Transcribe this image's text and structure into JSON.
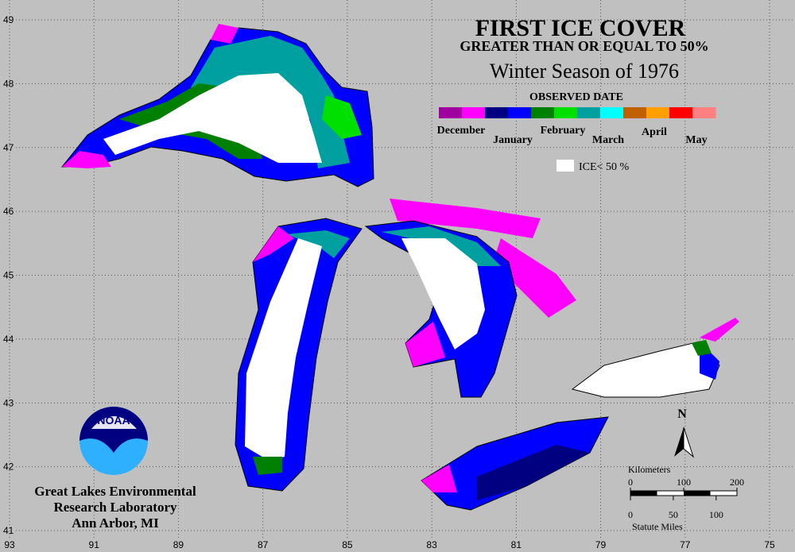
{
  "header": {
    "title": "FIRST ICE COVER",
    "subtitle": "GREATER THAN OR EQUAL TO 50%",
    "season": "Winter Season of 1976"
  },
  "legend": {
    "title": "OBSERVED DATE",
    "colors": [
      "#a000a0",
      "#ff00ff",
      "#000080",
      "#0000ff",
      "#008000",
      "#00e000",
      "#00a0a0",
      "#00ffff",
      "#c06000",
      "#ffa000",
      "#ff0000",
      "#ff8080"
    ],
    "labels": [
      "December",
      "January",
      "February",
      "March",
      "April",
      "May"
    ],
    "white_label": "ICE< 50 %"
  },
  "grid": {
    "lon_ticks": [
      93,
      91,
      89,
      87,
      85,
      83,
      81,
      79,
      77,
      75
    ],
    "lat_ticks": [
      49,
      48,
      47,
      46,
      45,
      44,
      43,
      42,
      41
    ],
    "xlim": [
      93,
      75
    ],
    "ylim": [
      49,
      41
    ]
  },
  "north": "N",
  "scale": {
    "km_title": "Kilometers",
    "km_ticks": [
      0,
      100,
      200
    ],
    "mi_title": "Statute Miles",
    "mi_ticks": [
      0,
      50,
      100
    ]
  },
  "logo": "NOAA",
  "credit": [
    "Great Lakes Environmental",
    "Research Laboratory",
    "Ann Arbor, MI"
  ]
}
